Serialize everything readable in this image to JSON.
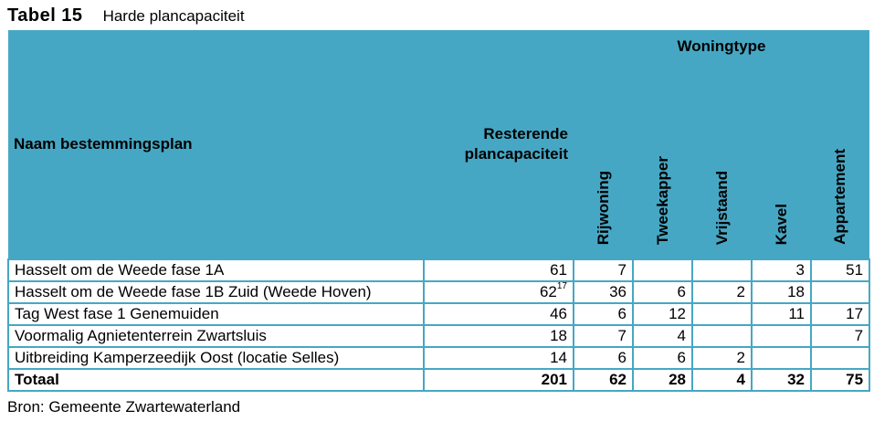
{
  "caption": {
    "label": "Tabel 15",
    "title": "Harde plancapaciteit"
  },
  "table": {
    "header": {
      "name": "Naam bestemmingsplan",
      "resterende_line1": "Resterende",
      "resterende_line2": "plancapaciteit",
      "group": "Woningtype",
      "types": [
        "Rijwoning",
        "Tweekapper",
        "Vrijstaand",
        "Kavel",
        "Appartement"
      ]
    },
    "rows": [
      {
        "name": "Hasselt om de Weede fase 1A",
        "rest": "61",
        "footnote": "",
        "rij": "7",
        "twee": "",
        "vrij": "",
        "kavel": "3",
        "app": "51"
      },
      {
        "name": "Hasselt om de Weede fase 1B Zuid (Weede Hoven)",
        "rest": "62",
        "footnote": "17",
        "rij": "36",
        "twee": "6",
        "vrij": "2",
        "kavel": "18",
        "app": ""
      },
      {
        "name": "Tag West fase 1 Genemuiden",
        "rest": "46",
        "footnote": "",
        "rij": "6",
        "twee": "12",
        "vrij": "",
        "kavel": "11",
        "app": "17"
      },
      {
        "name": "Voormalig Agnietenterrein Zwartsluis",
        "rest": "18",
        "footnote": "",
        "rij": "7",
        "twee": "4",
        "vrij": "",
        "kavel": "",
        "app": "7"
      },
      {
        "name": "Uitbreiding Kamperzeedijk Oost (locatie Selles)",
        "rest": "14",
        "footnote": "",
        "rij": "6",
        "twee": "6",
        "vrij": "2",
        "kavel": "",
        "app": ""
      }
    ],
    "total": {
      "name": "Totaal",
      "rest": "201",
      "rij": "62",
      "twee": "28",
      "vrij": "4",
      "kavel": "32",
      "app": "75"
    },
    "header_color": "#46a7c4",
    "border_color": "#46a7c4"
  },
  "source": "Bron: Gemeente Zwartewaterland"
}
